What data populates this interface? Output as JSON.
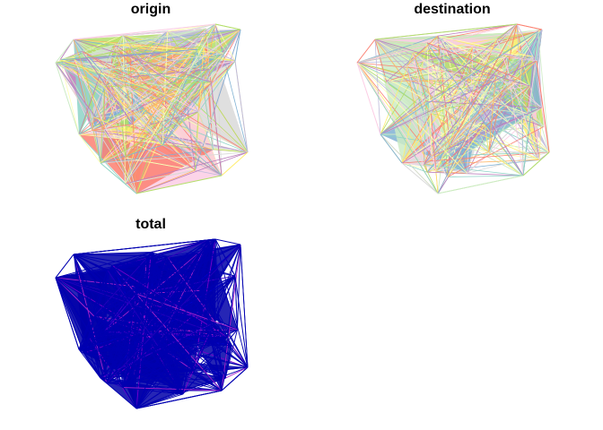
{
  "panels": [
    {
      "title": "origin",
      "palette": [
        "#8dd3c7",
        "#ffffb3",
        "#bebada",
        "#fb8072",
        "#80b1d3",
        "#fdb462",
        "#b3de69",
        "#fccde5",
        "#d9d9d9",
        "#bc80bd",
        "#ccebc5",
        "#ffed6f"
      ]
    },
    {
      "title": "destination",
      "palette": [
        "#8dd3c7",
        "#ffffb3",
        "#bebada",
        "#fb8072",
        "#80b1d3",
        "#fdb462",
        "#b3de69",
        "#fccde5",
        "#d9d9d9",
        "#bc80bd",
        "#ccebc5",
        "#ffed6f"
      ]
    },
    {
      "title": "total",
      "palette": [
        "#0000aa",
        "#0000cc",
        "#2200bb",
        "#4400cc",
        "#7700cc",
        "#aa22cc"
      ]
    }
  ],
  "empty_panel_label": ""
}
